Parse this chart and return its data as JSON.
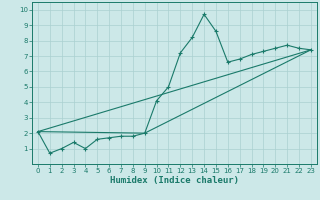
{
  "title": "",
  "xlabel": "Humidex (Indice chaleur)",
  "xlim": [
    -0.5,
    23.5
  ],
  "ylim": [
    0,
    10.5
  ],
  "xticks": [
    0,
    1,
    2,
    3,
    4,
    5,
    6,
    7,
    8,
    9,
    10,
    11,
    12,
    13,
    14,
    15,
    16,
    17,
    18,
    19,
    20,
    21,
    22,
    23
  ],
  "yticks": [
    1,
    2,
    3,
    4,
    5,
    6,
    7,
    8,
    9,
    10
  ],
  "bg_color": "#cce8e8",
  "grid_color": "#aad0d0",
  "line_color": "#1a7a6a",
  "line1_x": [
    0,
    1,
    2,
    3,
    4,
    5,
    6,
    7,
    8,
    9,
    10,
    11,
    12,
    13,
    14,
    15,
    16,
    17,
    18,
    19,
    20,
    21,
    22,
    23
  ],
  "line1_y": [
    2.1,
    0.7,
    1.0,
    1.4,
    1.0,
    1.6,
    1.7,
    1.8,
    1.8,
    2.0,
    4.1,
    5.0,
    7.2,
    8.2,
    9.7,
    8.6,
    6.6,
    6.8,
    7.1,
    7.3,
    7.5,
    7.7,
    7.5,
    7.4
  ],
  "line2_x": [
    0,
    23
  ],
  "line2_y": [
    2.1,
    7.4
  ],
  "line3_x": [
    0,
    9,
    23
  ],
  "line3_y": [
    2.1,
    2.0,
    7.4
  ]
}
